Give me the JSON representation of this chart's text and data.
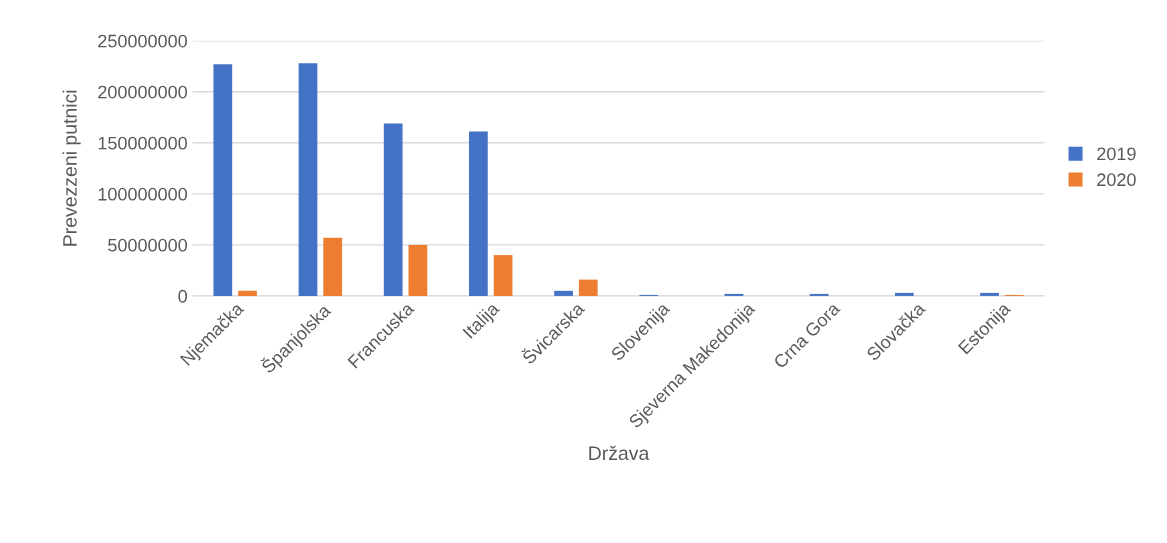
{
  "chart_data": {
    "type": "bar",
    "xlabel": "Država",
    "ylabel": "Prevezzeni putnici",
    "categories": [
      "Njemačka",
      "Španjolska",
      "Francuska",
      "Italija",
      "Švicarska",
      "Slovenija",
      "Sjeverna Makedonija",
      "Crna Gora",
      "Slovačka",
      "Estonija"
    ],
    "series": [
      {
        "name": "2019",
        "color": "#4472c4",
        "values": [
          227000000,
          228000000,
          169000000,
          161000000,
          5000000,
          1000000,
          2000000,
          2000000,
          3000000,
          3000000
        ]
      },
      {
        "name": "2020",
        "color": "#ed7d31",
        "values": [
          5000000,
          57000000,
          50000000,
          40000000,
          16000000,
          null,
          null,
          null,
          null,
          1000000
        ]
      }
    ],
    "ylim": [
      0,
      250000000
    ],
    "yticks": [
      0,
      50000000,
      100000000,
      150000000,
      200000000,
      250000000
    ],
    "grid": "y",
    "legend": "right"
  }
}
